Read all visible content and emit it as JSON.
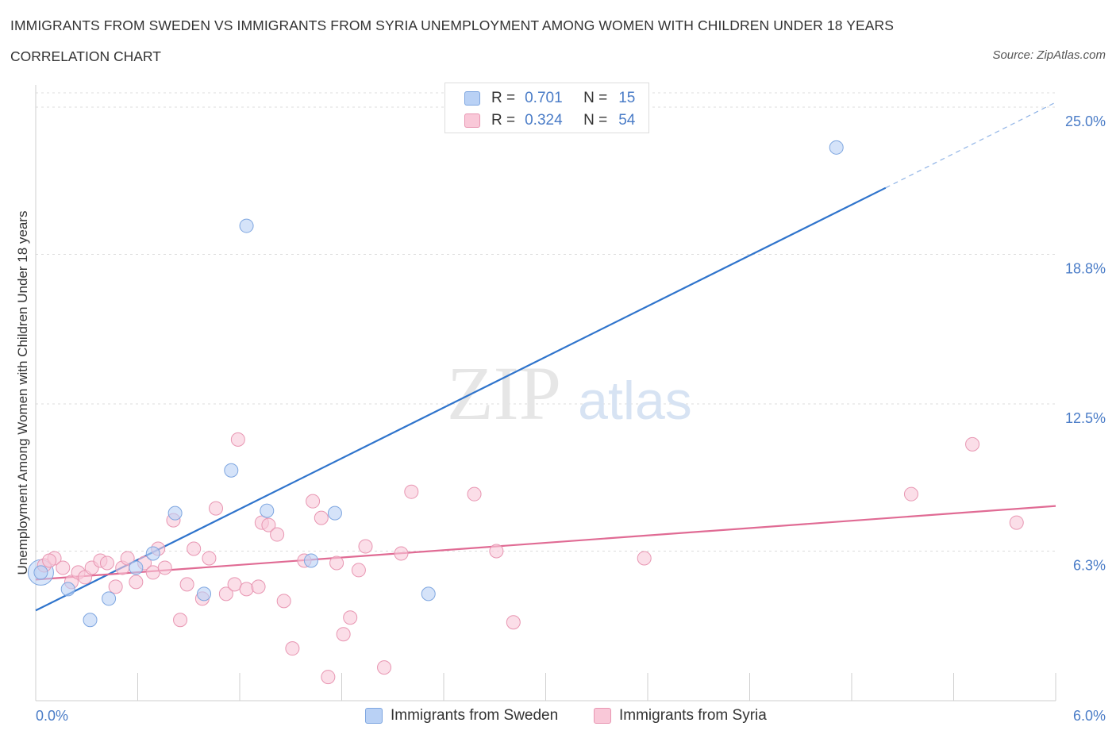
{
  "header": {
    "title": "IMMIGRANTS FROM SWEDEN VS IMMIGRANTS FROM SYRIA UNEMPLOYMENT AMONG WOMEN WITH CHILDREN UNDER 18 YEARS",
    "subtitle": "CORRELATION CHART",
    "source": "Source: ZipAtlas.com"
  },
  "watermark": {
    "zip": "ZIP",
    "atlas": "atlas"
  },
  "legend": {
    "r_label": "R =",
    "n_label": "N =",
    "rows": [
      {
        "r": "0.701",
        "n": "15",
        "color": "#b9d1f5",
        "border": "#7ea6e0"
      },
      {
        "r": "0.324",
        "n": "54",
        "color": "#f9c8d8",
        "border": "#e896b2"
      }
    ]
  },
  "chart_data": {
    "type": "scatter",
    "title": "IMMIGRANTS FROM SWEDEN VS IMMIGRANTS FROM SYRIA UNEMPLOYMENT AMONG WOMEN WITH CHILDREN UNDER 18 YEARS",
    "subtitle": "CORRELATION CHART",
    "xlabel": "",
    "ylabel": "Unemployment Among Women with Children Under 18 years",
    "xlim": [
      0,
      6
    ],
    "ylim": [
      0,
      25
    ],
    "x_tick_labels": [
      "0.0%",
      "6.0%"
    ],
    "y_ticks": [
      6.3,
      12.5,
      18.8,
      25.0
    ],
    "y_tick_labels": [
      "6.3%",
      "12.5%",
      "18.8%",
      "25.0%"
    ],
    "grid": true,
    "legend_position": "top-center",
    "series": [
      {
        "name": "Immigrants from Sweden",
        "color": "#b9d1f5",
        "stroke": "#7ea6e0",
        "line_color": "#2f74cc",
        "trend": {
          "x": [
            0,
            5.0
          ],
          "y": [
            3.8,
            21.6
          ]
        },
        "trend_dashed": {
          "x": [
            5.0,
            6.0
          ],
          "y": [
            21.6,
            25.2
          ]
        },
        "points": [
          {
            "x": 0.03,
            "y": 5.4
          },
          {
            "x": 0.19,
            "y": 4.7
          },
          {
            "x": 0.32,
            "y": 3.4
          },
          {
            "x": 0.43,
            "y": 4.3
          },
          {
            "x": 0.59,
            "y": 5.6
          },
          {
            "x": 0.69,
            "y": 6.2
          },
          {
            "x": 0.82,
            "y": 7.9
          },
          {
            "x": 0.99,
            "y": 4.5
          },
          {
            "x": 1.15,
            "y": 9.7
          },
          {
            "x": 1.24,
            "y": 20.0
          },
          {
            "x": 1.36,
            "y": 8.0
          },
          {
            "x": 1.62,
            "y": 5.9
          },
          {
            "x": 1.76,
            "y": 7.9
          },
          {
            "x": 2.31,
            "y": 4.5
          },
          {
            "x": 4.71,
            "y": 23.3
          }
        ]
      },
      {
        "name": "Immigrants from Syria",
        "color": "#f9c8d8",
        "stroke": "#e896b2",
        "line_color": "#e06b94",
        "trend": {
          "x": [
            0,
            6.0
          ],
          "y": [
            5.1,
            8.2
          ]
        },
        "points": [
          {
            "x": 0.05,
            "y": 5.7
          },
          {
            "x": 0.11,
            "y": 6.0
          },
          {
            "x": 0.16,
            "y": 5.6
          },
          {
            "x": 0.21,
            "y": 5.0
          },
          {
            "x": 0.25,
            "y": 5.4
          },
          {
            "x": 0.29,
            "y": 5.2
          },
          {
            "x": 0.33,
            "y": 5.6
          },
          {
            "x": 0.38,
            "y": 5.9
          },
          {
            "x": 0.42,
            "y": 5.8
          },
          {
            "x": 0.47,
            "y": 4.8
          },
          {
            "x": 0.51,
            "y": 5.6
          },
          {
            "x": 0.54,
            "y": 6.0
          },
          {
            "x": 0.59,
            "y": 5.0
          },
          {
            "x": 0.64,
            "y": 5.8
          },
          {
            "x": 0.69,
            "y": 5.4
          },
          {
            "x": 0.72,
            "y": 6.4
          },
          {
            "x": 0.76,
            "y": 5.6
          },
          {
            "x": 0.81,
            "y": 7.6
          },
          {
            "x": 0.85,
            "y": 3.4
          },
          {
            "x": 0.89,
            "y": 4.9
          },
          {
            "x": 0.93,
            "y": 6.4
          },
          {
            "x": 0.98,
            "y": 4.3
          },
          {
            "x": 1.02,
            "y": 6.0
          },
          {
            "x": 1.06,
            "y": 8.1
          },
          {
            "x": 1.12,
            "y": 4.5
          },
          {
            "x": 1.17,
            "y": 4.9
          },
          {
            "x": 1.19,
            "y": 11.0
          },
          {
            "x": 1.24,
            "y": 4.7
          },
          {
            "x": 1.31,
            "y": 4.8
          },
          {
            "x": 1.33,
            "y": 7.5
          },
          {
            "x": 1.37,
            "y": 7.4
          },
          {
            "x": 1.42,
            "y": 7.0
          },
          {
            "x": 1.46,
            "y": 4.2
          },
          {
            "x": 1.51,
            "y": 2.2
          },
          {
            "x": 1.58,
            "y": 5.9
          },
          {
            "x": 1.63,
            "y": 8.4
          },
          {
            "x": 1.68,
            "y": 7.7
          },
          {
            "x": 1.72,
            "y": 1.0
          },
          {
            "x": 1.77,
            "y": 5.8
          },
          {
            "x": 1.81,
            "y": 2.8
          },
          {
            "x": 1.85,
            "y": 3.5
          },
          {
            "x": 1.9,
            "y": 5.5
          },
          {
            "x": 1.94,
            "y": 6.5
          },
          {
            "x": 2.05,
            "y": 1.4
          },
          {
            "x": 2.15,
            "y": 6.2
          },
          {
            "x": 2.21,
            "y": 8.8
          },
          {
            "x": 2.58,
            "y": 8.7
          },
          {
            "x": 2.71,
            "y": 6.3
          },
          {
            "x": 2.81,
            "y": 3.3
          },
          {
            "x": 3.58,
            "y": 6.0
          },
          {
            "x": 5.15,
            "y": 8.7
          },
          {
            "x": 5.51,
            "y": 10.8
          },
          {
            "x": 5.77,
            "y": 7.5
          },
          {
            "x": 0.08,
            "y": 5.9
          }
        ]
      }
    ]
  },
  "bottom_legend": {
    "items": [
      {
        "label": "Immigrants from Sweden"
      },
      {
        "label": "Immigrants from Syria"
      }
    ]
  }
}
